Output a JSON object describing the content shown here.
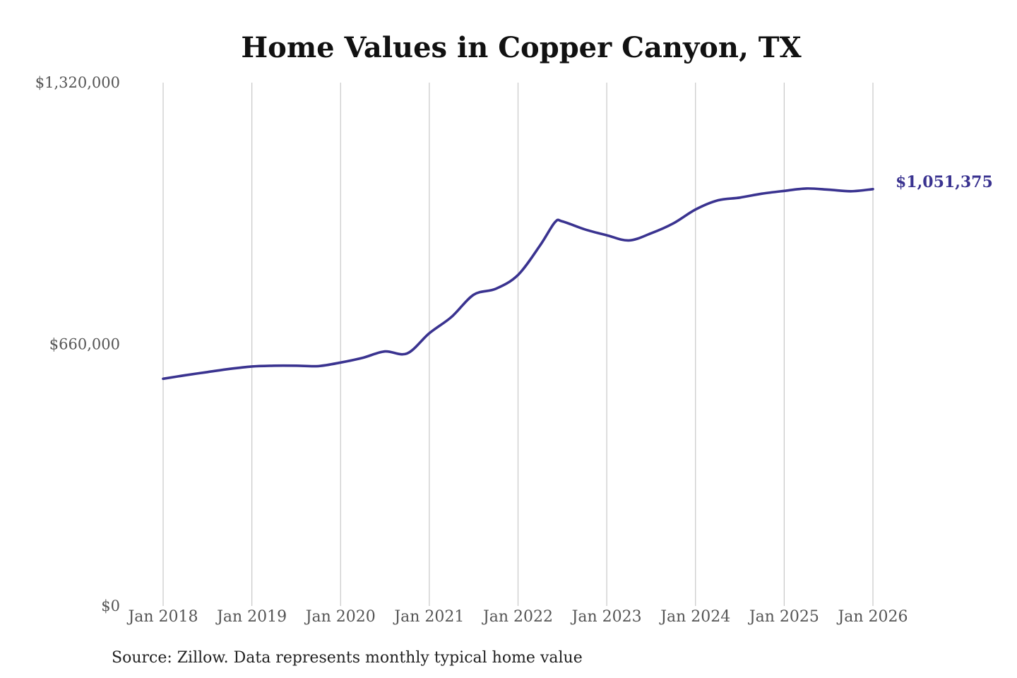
{
  "chart_data": {
    "type": "line",
    "title": "Home Values in Copper Canyon, TX",
    "source": "Source: Zillow. Data represents monthly typical home value",
    "ylim": [
      0,
      1320000
    ],
    "y_ticks": [
      {
        "value": 0,
        "label": "$0"
      },
      {
        "value": 660000,
        "label": "$660,000"
      },
      {
        "value": 1320000,
        "label": "$1,320,000"
      }
    ],
    "x_ticks": [
      {
        "value": "2018-01",
        "label": "Jan 2018"
      },
      {
        "value": "2019-01",
        "label": "Jan 2019"
      },
      {
        "value": "2020-01",
        "label": "Jan 2020"
      },
      {
        "value": "2021-01",
        "label": "Jan 2021"
      },
      {
        "value": "2022-01",
        "label": "Jan 2022"
      },
      {
        "value": "2023-01",
        "label": "Jan 2023"
      },
      {
        "value": "2024-01",
        "label": "Jan 2024"
      },
      {
        "value": "2025-01",
        "label": "Jan 2025"
      },
      {
        "value": "2026-01",
        "label": "Jan 2026"
      }
    ],
    "xlim": [
      "2018-01",
      "2026-01"
    ],
    "grid": "vertical",
    "line_color": "#3a3390",
    "end_label": "$1,051,375",
    "series": [
      {
        "x": [
          "2018-01",
          "2018-04",
          "2018-07",
          "2018-10",
          "2019-01",
          "2019-04",
          "2019-07",
          "2019-10",
          "2020-01",
          "2020-04",
          "2020-07",
          "2020-10",
          "2021-01",
          "2021-04",
          "2021-07",
          "2021-10",
          "2022-01",
          "2022-04",
          "2022-06",
          "2022-07",
          "2022-10",
          "2023-01",
          "2023-04",
          "2023-07",
          "2023-10",
          "2024-01",
          "2024-04",
          "2024-07",
          "2024-10",
          "2025-01",
          "2025-04",
          "2025-07",
          "2025-10",
          "2026-01"
        ],
        "values": [
          573000,
          582000,
          590000,
          598000,
          604000,
          606000,
          606000,
          605000,
          614000,
          626000,
          642000,
          637000,
          688000,
          729000,
          785000,
          800000,
          835000,
          910000,
          968000,
          970000,
          950000,
          935000,
          922000,
          940000,
          965000,
          1000000,
          1023000,
          1030000,
          1040000,
          1047000,
          1053000,
          1050000,
          1046000,
          1051375
        ]
      }
    ]
  }
}
